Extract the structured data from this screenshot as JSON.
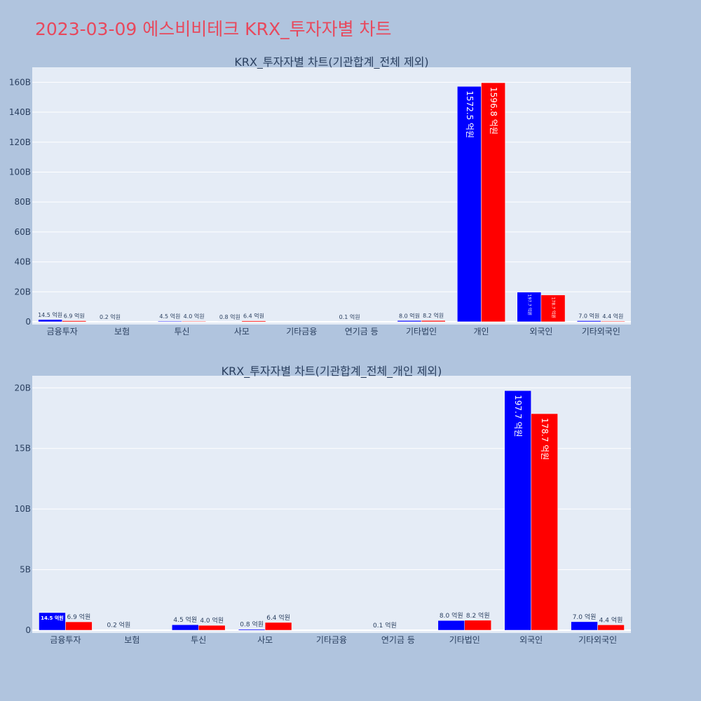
{
  "page_title": "2023-03-09 에스비비테크 KRX_투자자별 차트",
  "colors": {
    "buy": "#0000ff",
    "sell": "#ff0000",
    "plot_bg": "#e5ecf6",
    "page_bg": "#b0c4de",
    "title": "#e8485c"
  },
  "chart_data": [
    {
      "type": "bar",
      "title": "KRX_투자자별 차트(기관합계_전체 제외)",
      "categories": [
        "금융투자",
        "보험",
        "투신",
        "사모",
        "기타금융",
        "연기금 등",
        "기타법인",
        "개인",
        "외국인",
        "기타외국인"
      ],
      "series": [
        {
          "color": "#0000ff",
          "values": [
            1450000000,
            20000000,
            450000000,
            80000000,
            0,
            10000000,
            800000000,
            157250000000,
            19770000000,
            700000000
          ],
          "labels": [
            "14.5 억원",
            "0.2 억원",
            "4.5 억원",
            "0.8 억원",
            "",
            "0.1 억원",
            "8.0 억원",
            "1572.5 억원",
            "197.7 억원",
            "7.0 억원"
          ]
        },
        {
          "color": "#ff0000",
          "values": [
            690000000,
            0,
            400000000,
            640000000,
            0,
            0,
            820000000,
            159680000000,
            17870000000,
            440000000
          ],
          "labels": [
            "6.9 억원",
            "",
            "4.0 억원",
            "6.4 억원",
            "",
            "",
            "8.2 억원",
            "1596.8 억원",
            "178.7 억원",
            "4.4 억원"
          ]
        }
      ],
      "ylim": [
        0,
        170000000000
      ],
      "yticks": [
        0,
        20000000000,
        40000000000,
        60000000000,
        80000000000,
        100000000000,
        120000000000,
        140000000000,
        160000000000
      ],
      "ytick_labels": [
        "0",
        "20B",
        "40B",
        "60B",
        "80B",
        "100B",
        "120B",
        "140B",
        "160B"
      ],
      "grid": true,
      "legend": "none"
    },
    {
      "type": "bar",
      "title": "KRX_투자자별 차트(기관합계_전체_개인 제외)",
      "categories": [
        "금융투자",
        "보험",
        "투신",
        "사모",
        "기타금융",
        "연기금 등",
        "기타법인",
        "외국인",
        "기타외국인"
      ],
      "series": [
        {
          "color": "#0000ff",
          "values": [
            1450000000,
            20000000,
            450000000,
            80000000,
            0,
            10000000,
            800000000,
            19770000000,
            700000000
          ],
          "labels": [
            "14.5 억원",
            "0.2 억원",
            "4.5 억원",
            "0.8 억원",
            "",
            "0.1 억원",
            "8.0 억원",
            "197.7 억원",
            "7.0 억원"
          ]
        },
        {
          "color": "#ff0000",
          "values": [
            690000000,
            0,
            400000000,
            640000000,
            0,
            0,
            820000000,
            17870000000,
            440000000
          ],
          "labels": [
            "6.9 억원",
            "",
            "4.0 억원",
            "6.4 억원",
            "",
            "",
            "8.2 억원",
            "178.7 억원",
            "4.4 억원"
          ]
        }
      ],
      "ylim": [
        0,
        21000000000
      ],
      "yticks": [
        0,
        5000000000,
        10000000000,
        15000000000,
        20000000000
      ],
      "ytick_labels": [
        "0",
        "5B",
        "10B",
        "15B",
        "20B"
      ],
      "grid": true,
      "legend": "none"
    }
  ]
}
